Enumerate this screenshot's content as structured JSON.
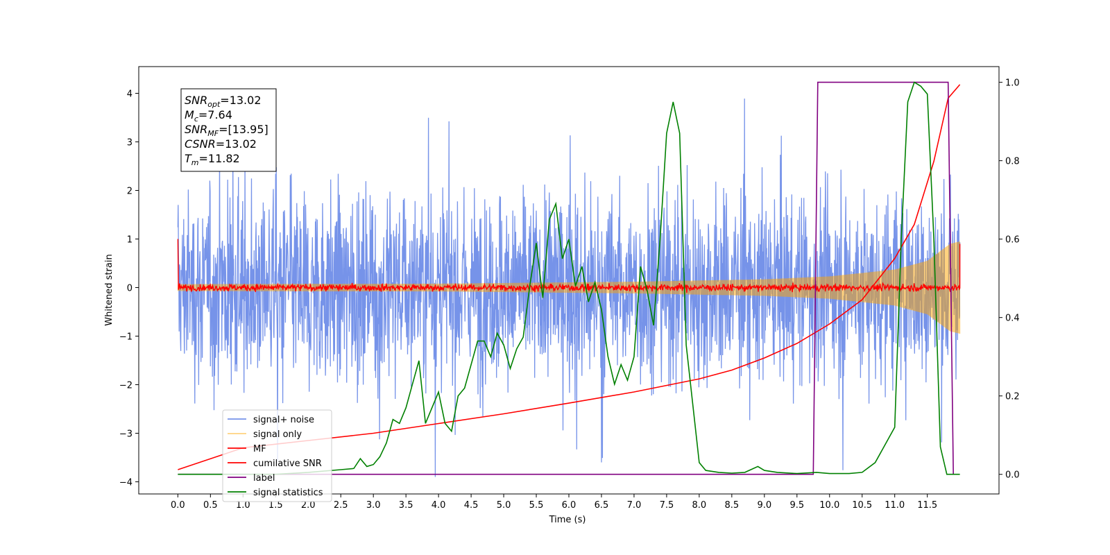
{
  "chart_data": {
    "type": "line",
    "xlabel": "Time (s)",
    "ylabel_left": "Whitened strain",
    "xlim": [
      -0.6,
      12.6
    ],
    "ylim_left": [
      -4.25,
      4.55
    ],
    "ylim_right": [
      -0.05,
      1.04
    ],
    "x_ticks": [
      0.0,
      0.5,
      1.0,
      1.5,
      2.0,
      2.5,
      3.0,
      3.5,
      4.0,
      4.5,
      5.0,
      5.5,
      6.0,
      6.5,
      7.0,
      7.5,
      8.0,
      8.5,
      9.0,
      9.5,
      10.0,
      10.5,
      11.0,
      11.5
    ],
    "x_tick_labels": [
      "0.0",
      "0.5",
      "1.0",
      "1.5",
      "2.0",
      "2.5",
      "3.0",
      "3.5",
      "4.0",
      "4.5",
      "5.0",
      "5.5",
      "6.0",
      "6.5",
      "7.0",
      "7.5",
      "8.0",
      "8.5",
      "9.0",
      "9.5",
      "10.0",
      "10.5",
      "11.0",
      "11.5"
    ],
    "y_left_ticks": [
      -4,
      -3,
      -2,
      -1,
      0,
      1,
      2,
      3,
      4
    ],
    "y_left_tick_labels": [
      "−4",
      "−3",
      "−2",
      "−1",
      "0",
      "1",
      "2",
      "3",
      "4"
    ],
    "y_right_ticks": [
      0.0,
      0.2,
      0.4,
      0.6,
      0.8,
      1.0
    ],
    "y_right_tick_labels": [
      "0.0",
      "0.2",
      "0.4",
      "0.6",
      "0.8",
      "1.0"
    ],
    "legend_position": "lower-left",
    "series": [
      {
        "name": "signal+ noise",
        "axis": "left",
        "color": "#4169e1",
        "style": "noisy band",
        "envelope": [
          [
            0.0,
            2.4
          ],
          [
            2.0,
            2.5
          ],
          [
            4.0,
            2.5
          ],
          [
            6.0,
            2.5
          ],
          [
            8.0,
            2.5
          ],
          [
            10.0,
            2.5
          ],
          [
            12.0,
            2.6
          ]
        ],
        "peak_max": 4.2,
        "peak_min": -3.9
      },
      {
        "name": "signal only",
        "axis": "left",
        "color": "#ffa500",
        "style": "chirp",
        "amplitude": [
          [
            0.0,
            0.07
          ],
          [
            4.0,
            0.08
          ],
          [
            7.0,
            0.12
          ],
          [
            9.0,
            0.17
          ],
          [
            10.0,
            0.23
          ],
          [
            11.0,
            0.37
          ],
          [
            11.5,
            0.55
          ],
          [
            11.85,
            0.9
          ],
          [
            12.0,
            0.95
          ]
        ]
      },
      {
        "name": "MF",
        "axis": "left",
        "color": "#ff0000",
        "style": "noisy band",
        "envelope": [
          [
            0.0,
            0.15
          ],
          [
            12.0,
            0.15
          ]
        ],
        "start_value": 1.0,
        "end_value": 0.9
      },
      {
        "name": "cumilative SNR",
        "axis": "left",
        "color": "#ff0000",
        "x": [
          0.0,
          1.0,
          2.0,
          3.0,
          4.0,
          5.0,
          6.0,
          7.0,
          8.0,
          8.5,
          9.0,
          9.5,
          10.0,
          10.5,
          11.0,
          11.3,
          11.6,
          11.82,
          12.0
        ],
        "y": [
          -3.75,
          -3.3,
          -3.15,
          -3.0,
          -2.8,
          -2.6,
          -2.38,
          -2.15,
          -1.88,
          -1.7,
          -1.45,
          -1.15,
          -0.75,
          -0.25,
          0.6,
          1.3,
          2.6,
          3.9,
          4.18
        ]
      },
      {
        "name": "label",
        "axis": "right",
        "color": "#800080",
        "x": [
          0.0,
          9.75,
          9.82,
          11.82,
          11.9
        ],
        "y": [
          0.0,
          0.0,
          1.0,
          1.0,
          0.0
        ]
      },
      {
        "name": "signal statistics",
        "axis": "right",
        "color": "#008000",
        "x": [
          0.0,
          0.5,
          1.0,
          1.5,
          2.0,
          2.5,
          2.7,
          2.8,
          2.9,
          3.0,
          3.1,
          3.2,
          3.3,
          3.4,
          3.5,
          3.6,
          3.7,
          3.8,
          3.9,
          4.0,
          4.1,
          4.2,
          4.3,
          4.4,
          4.5,
          4.6,
          4.7,
          4.8,
          4.9,
          5.0,
          5.1,
          5.2,
          5.3,
          5.4,
          5.5,
          5.6,
          5.7,
          5.8,
          5.9,
          6.0,
          6.1,
          6.2,
          6.3,
          6.4,
          6.5,
          6.6,
          6.7,
          6.8,
          6.9,
          7.0,
          7.1,
          7.2,
          7.3,
          7.4,
          7.5,
          7.6,
          7.7,
          7.8,
          7.9,
          8.0,
          8.1,
          8.3,
          8.5,
          8.7,
          8.9,
          9.0,
          9.2,
          9.5,
          9.8,
          10.0,
          10.3,
          10.5,
          10.7,
          10.9,
          11.0,
          11.1,
          11.2,
          11.3,
          11.4,
          11.5,
          11.6,
          11.7,
          11.8,
          11.9,
          12.0
        ],
        "y": [
          0.0,
          0.0,
          0.0,
          0.0,
          0.005,
          0.012,
          0.015,
          0.04,
          0.02,
          0.025,
          0.045,
          0.08,
          0.14,
          0.13,
          0.17,
          0.23,
          0.29,
          0.13,
          0.17,
          0.21,
          0.13,
          0.11,
          0.2,
          0.22,
          0.28,
          0.34,
          0.34,
          0.3,
          0.36,
          0.33,
          0.27,
          0.32,
          0.35,
          0.48,
          0.59,
          0.45,
          0.65,
          0.69,
          0.55,
          0.6,
          0.48,
          0.53,
          0.44,
          0.49,
          0.42,
          0.3,
          0.23,
          0.28,
          0.24,
          0.3,
          0.53,
          0.47,
          0.38,
          0.6,
          0.87,
          0.95,
          0.87,
          0.33,
          0.18,
          0.03,
          0.01,
          0.005,
          0.003,
          0.005,
          0.02,
          0.01,
          0.005,
          0.002,
          0.005,
          0.002,
          0.002,
          0.005,
          0.03,
          0.09,
          0.12,
          0.6,
          0.95,
          1.0,
          0.99,
          0.97,
          0.6,
          0.07,
          0.0,
          0.0,
          0.0
        ]
      }
    ],
    "annotation_lines": [
      {
        "pre": "SNR",
        "sub": "opt",
        "post": "=13.02"
      },
      {
        "pre": "M",
        "sub": "c",
        "post": "=7.64"
      },
      {
        "pre": "SNR",
        "sub": "MF",
        "post": "=[13.95]"
      },
      {
        "pre": "CSNR",
        "sub": "",
        "post": "=13.02"
      },
      {
        "pre": "T",
        "sub": "m",
        "post": "=11.82"
      }
    ]
  }
}
